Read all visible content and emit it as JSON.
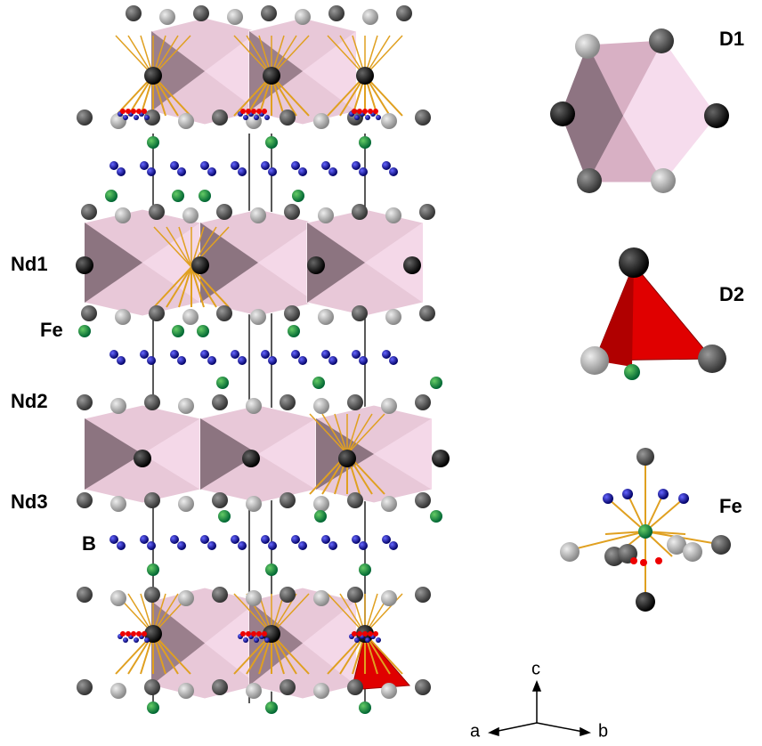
{
  "structure_labels": [
    "Nd1",
    "Fe",
    "Nd2",
    "Nd3",
    "B"
  ],
  "panel_labels": [
    "D1",
    "D2",
    "Fe"
  ],
  "axes": [
    "c",
    "a",
    "b"
  ]
}
